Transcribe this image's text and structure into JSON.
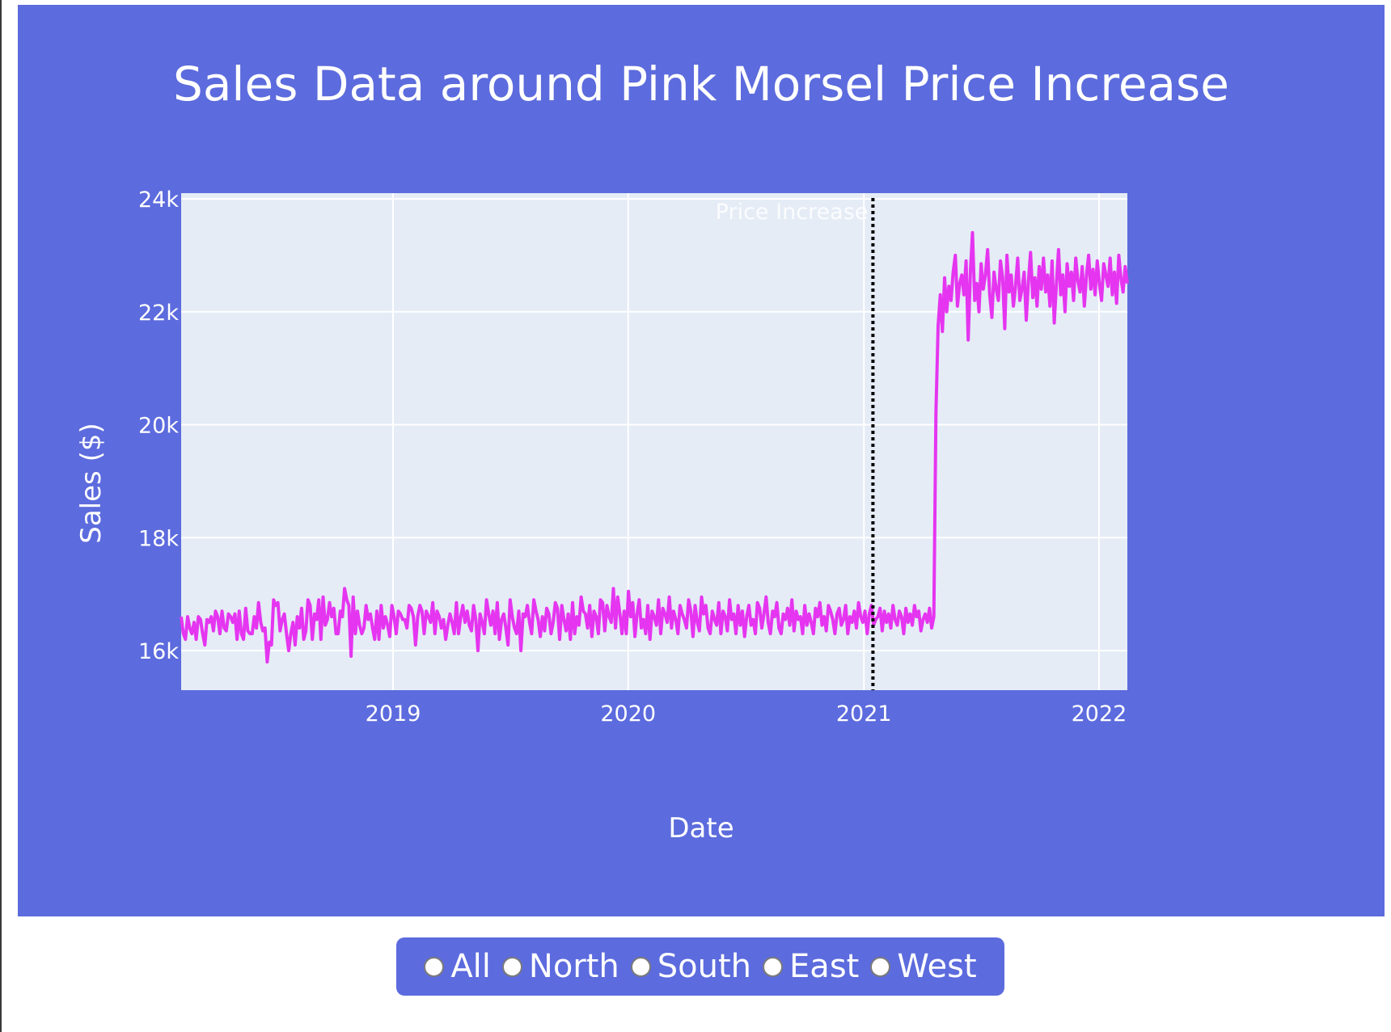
{
  "chart_data": {
    "type": "line",
    "title": "Sales Data around Pink Morsel Price Increase",
    "xlabel": "Date",
    "ylabel": "Sales ($)",
    "x_range": [
      "2018-02-06",
      "2022-02-14"
    ],
    "y_range": [
      15300,
      24100
    ],
    "y_ticks": [
      16000,
      18000,
      20000,
      22000,
      24000
    ],
    "y_tick_labels": [
      "16k",
      "18k",
      "20k",
      "22k",
      "24k"
    ],
    "x_ticks": [
      "2019-01-01",
      "2020-01-01",
      "2021-01-01",
      "2022-01-01"
    ],
    "x_tick_labels": [
      "2019",
      "2020",
      "2021",
      "2022"
    ],
    "grid": true,
    "line_color": "#e535f0",
    "annotation": {
      "date": "2021-01-15",
      "text": "Price Increase",
      "style": "dotted"
    },
    "series": [
      {
        "x_start": "2018-02-06",
        "x_end": "2022-02-14",
        "values": [
          16600,
          16300,
          16200,
          16600,
          16400,
          16300,
          16500,
          16200,
          16600,
          16550,
          16300,
          16100,
          16550,
          16500,
          16600,
          16350,
          16700,
          16600,
          16300,
          16700,
          16400,
          16350,
          16650,
          16600,
          16500,
          16650,
          16200,
          16700,
          16300,
          16200,
          16750,
          16350,
          16300,
          16300,
          16600,
          16400,
          16850,
          16500,
          16350,
          16400,
          15800,
          16150,
          16100,
          16900,
          16800,
          16850,
          16350,
          16550,
          16650,
          16300,
          16000,
          16300,
          16500,
          16100,
          16600,
          16400,
          16750,
          16200,
          16350,
          16900,
          16800,
          16200,
          16650,
          16550,
          16900,
          16200,
          16950,
          16450,
          16550,
          16850,
          16600,
          16750,
          16300,
          16300,
          16700,
          16600,
          17100,
          16900,
          16800,
          15900,
          16950,
          16300,
          16700,
          16450,
          16300,
          16400,
          16800,
          16550,
          16650,
          16400,
          16200,
          16700,
          16200,
          16800,
          16400,
          16600,
          16450,
          16250,
          16800,
          16600,
          16300,
          16700,
          16650,
          16550,
          16550,
          16400,
          16800,
          16750,
          16600,
          16100,
          16600,
          16800,
          16700,
          16300,
          16700,
          16600,
          16500,
          16850,
          16300,
          16700,
          16600,
          16400,
          16550,
          16200,
          16450,
          16650,
          16500,
          16300,
          16850,
          16300,
          16600,
          16800,
          16500,
          16700,
          16450,
          16350,
          16800,
          16550,
          16000,
          16650,
          16500,
          16300,
          16900,
          16650,
          16450,
          16700,
          16300,
          16850,
          16200,
          16550,
          16650,
          16400,
          16100,
          16900,
          16600,
          16400,
          16300,
          16700,
          16000,
          16650,
          16600,
          16800,
          16500,
          16300,
          16900,
          16700,
          16550,
          16250,
          16600,
          16350,
          16750,
          16650,
          16300,
          16500,
          16850,
          16750,
          16200,
          16800,
          16550,
          16350,
          16650,
          16200,
          16850,
          16300,
          16600,
          16450,
          16950,
          16700,
          16650,
          16400,
          16800,
          16250,
          16700,
          16600,
          16300,
          16900,
          16850,
          16350,
          16800,
          16600,
          16500,
          17100,
          16400,
          16950,
          16650,
          16300,
          16700,
          16300,
          17050,
          16600,
          16850,
          16250,
          16650,
          16900,
          16400,
          16550,
          16300,
          16800,
          16200,
          16700,
          16600,
          16450,
          16900,
          16300,
          16750,
          16650,
          16500,
          16950,
          16400,
          16700,
          16550,
          16300,
          16800,
          16650,
          16550,
          16400,
          16900,
          16700,
          16250,
          16800,
          16500,
          16350,
          16950,
          16650,
          16800,
          16400,
          16300,
          16700,
          16550,
          16450,
          16850,
          16300,
          16700,
          16600,
          16350,
          16900,
          16550,
          16650,
          16300,
          16800,
          16450,
          16700,
          16250,
          16600,
          16800,
          16450,
          16550,
          16300,
          16850,
          16750,
          16400,
          16650,
          16950,
          16500,
          16300,
          16700,
          16600,
          16850,
          16400,
          16300,
          16650,
          16550,
          16750,
          16450,
          16900,
          16350,
          16700,
          16550,
          16600,
          16300,
          16800,
          16450,
          16650,
          16500,
          16300,
          16750,
          16600,
          16850,
          16450,
          16600,
          16350,
          16800,
          16700,
          16550,
          16300,
          16650,
          16750,
          16450,
          16550,
          16800,
          16300,
          16600,
          16500,
          16700,
          16400,
          16850,
          16600,
          16500,
          16700,
          16300,
          16650,
          16800,
          16450,
          16550,
          16600,
          16750,
          16350,
          16700,
          16500,
          16650,
          16400,
          16800,
          16550,
          16450,
          16700,
          16600,
          16300,
          16750,
          16500,
          16650,
          16450,
          16800,
          16600,
          16700,
          16350,
          16550,
          16650,
          16500,
          16750,
          16400,
          16600,
          20200,
          21750,
          22300,
          21650,
          22600,
          22000,
          22450,
          22200,
          22700,
          23000,
          22100,
          22500,
          22650,
          22300,
          22900,
          21500,
          22700,
          23400,
          22200,
          22500,
          22000,
          22850,
          22400,
          22650,
          23100,
          22300,
          21900,
          22700,
          22400,
          22200,
          22900,
          22600,
          21700,
          23000,
          22350,
          22650,
          22100,
          22450,
          22950,
          22200,
          22400,
          22700,
          21850,
          22550,
          23050,
          22250,
          22600,
          22100,
          22800,
          22400,
          22950,
          22350,
          22650,
          22100,
          22900,
          21800,
          22500,
          23100,
          22300,
          22650,
          22000,
          22850,
          22450,
          22700,
          22200,
          22950,
          22550,
          22350,
          22800,
          22100,
          22650,
          23000,
          22400,
          22750,
          22300,
          22900,
          22500,
          22200,
          22850,
          22650,
          22450,
          22950,
          22300,
          22700,
          22150,
          23000,
          22600,
          22350,
          22800,
          22500
        ]
      }
    ]
  },
  "controls": {
    "radio_options": [
      {
        "label": "All"
      },
      {
        "label": "North"
      },
      {
        "label": "South"
      },
      {
        "label": "East"
      },
      {
        "label": "West"
      }
    ]
  }
}
